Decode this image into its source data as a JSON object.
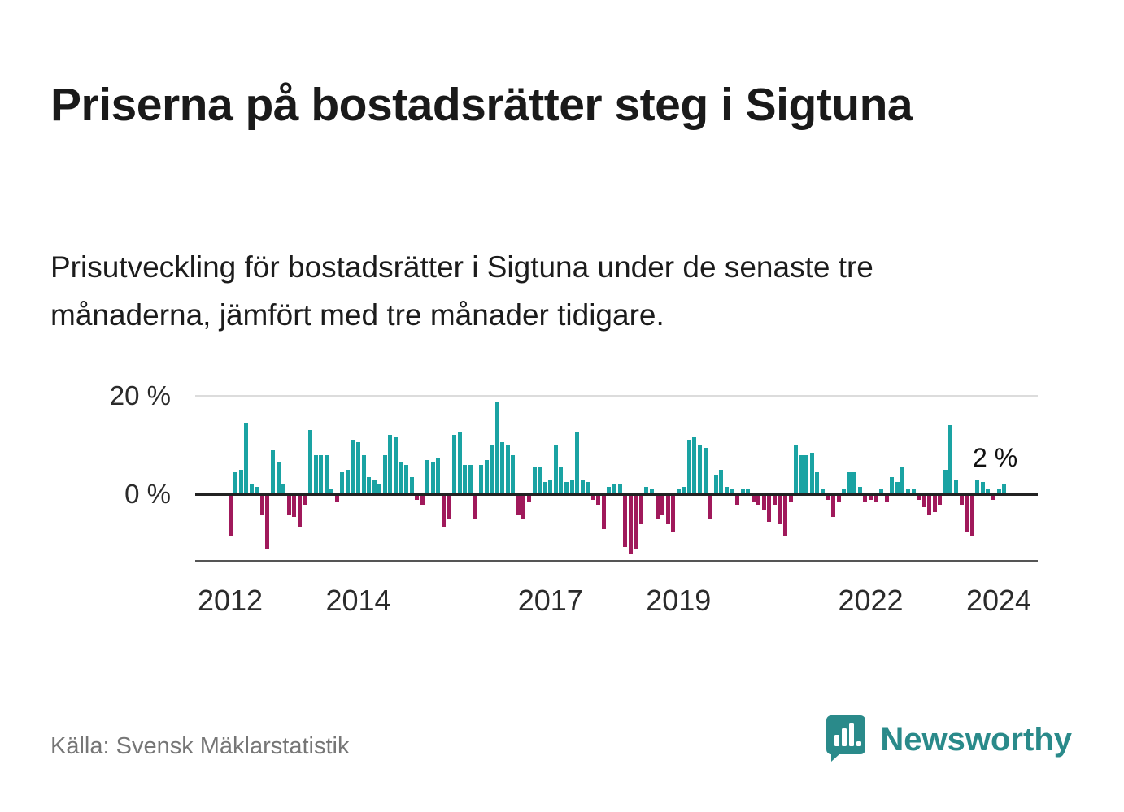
{
  "title": "Priserna på bostadsrätter steg i Sigtuna",
  "subtitle": "Prisutveckling för bostadsrätter i Sigtuna under de senaste tre månaderna, jämfört med tre månader tidigare.",
  "source": "Källa: Svensk Mäklarstatistik",
  "brand": {
    "name": "Newsworthy",
    "color": "#2a8a8a"
  },
  "annotation": {
    "label": "2 %"
  },
  "chart_data": {
    "type": "bar",
    "title": "Priserna på bostadsrätter steg i Sigtuna",
    "xlabel": "",
    "ylabel": "",
    "unit": "%",
    "frequency": "monthly",
    "x_start": "2012-01",
    "x_end": "2024-02",
    "ylim": [
      -14,
      22
    ],
    "y_tick_labels": [
      "20 %",
      "0 %"
    ],
    "y_tick_values": [
      20,
      0
    ],
    "x_tick_years": [
      2012,
      2014,
      2017,
      2019,
      2022,
      2024
    ],
    "grid": "horizontal-only",
    "legend": "none",
    "last_value_label": "2 %",
    "colors": {
      "positive": "#1aa3a3",
      "negative": "#a0195b"
    },
    "values": [
      -8.5,
      4.5,
      5.0,
      14.5,
      2.0,
      1.5,
      -4.0,
      -11.0,
      9.0,
      6.5,
      2.0,
      -4.0,
      -4.5,
      -6.5,
      -2.0,
      13.0,
      8.0,
      8.0,
      8.0,
      1.0,
      -1.5,
      4.5,
      5.0,
      11.0,
      10.5,
      8.0,
      3.5,
      3.0,
      2.0,
      8.0,
      12.0,
      11.5,
      6.5,
      6.0,
      3.5,
      -1.0,
      -2.0,
      7.0,
      6.5,
      7.5,
      -6.5,
      -5.0,
      12.0,
      12.5,
      6.0,
      6.0,
      -5.0,
      6.0,
      7.0,
      10.0,
      18.8,
      10.5,
      10.0,
      8.0,
      -4.0,
      -5.0,
      -1.5,
      5.5,
      5.5,
      2.5,
      3.0,
      10.0,
      5.5,
      2.5,
      3.0,
      12.5,
      3.0,
      2.5,
      -1.0,
      -2.0,
      -7.0,
      1.5,
      2.0,
      2.0,
      -10.5,
      -12.0,
      -11.0,
      -6.0,
      1.5,
      1.0,
      -5.0,
      -4.0,
      -6.0,
      -7.5,
      1.0,
      1.5,
      11.0,
      11.5,
      10.0,
      9.5,
      -5.0,
      4.0,
      5.0,
      1.5,
      1.0,
      -2.0,
      1.0,
      1.0,
      -1.5,
      -2.0,
      -3.0,
      -5.5,
      -2.0,
      -6.0,
      -8.5,
      -1.5,
      10.0,
      8.0,
      8.0,
      8.5,
      4.5,
      1.0,
      -1.0,
      -4.5,
      -1.5,
      1.0,
      4.5,
      4.5,
      1.5,
      -1.5,
      -1.0,
      -1.5,
      1.0,
      -1.5,
      3.5,
      2.5,
      5.5,
      1.0,
      1.0,
      -1.0,
      -2.5,
      -4.0,
      -3.5,
      -2.0,
      5.0,
      14.0,
      3.0,
      -2.0,
      -7.5,
      -8.5,
      3.0,
      2.5,
      1.0,
      -1.0,
      1.0,
      2.0
    ]
  }
}
